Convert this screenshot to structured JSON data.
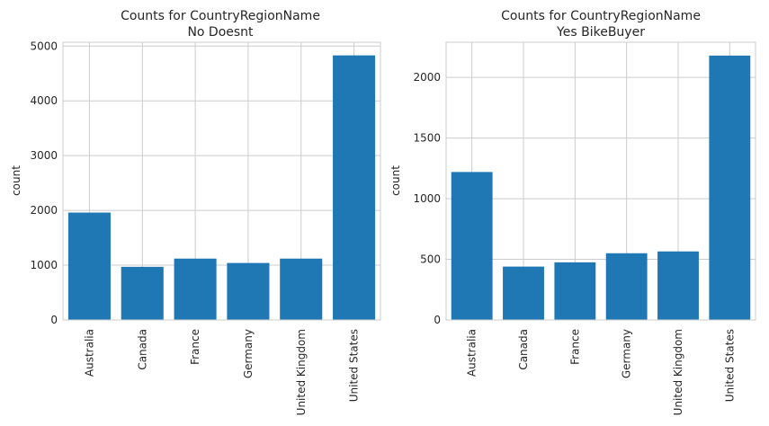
{
  "chart_data": [
    {
      "type": "bar",
      "title": "Counts for CountryRegionName",
      "subtitle": "No Doesnt",
      "ylabel": "count",
      "xlabel": "",
      "categories": [
        "Australia",
        "Canada",
        "France",
        "Germany",
        "United Kingdom",
        "United States"
      ],
      "values": [
        1960,
        970,
        1120,
        1040,
        1120,
        4830
      ],
      "ylim": [
        0,
        5070
      ],
      "yticks": [
        0,
        1000,
        2000,
        3000,
        4000,
        5000
      ],
      "grid": true,
      "bar_color": "#1f77b4"
    },
    {
      "type": "bar",
      "title": "Counts for CountryRegionName",
      "subtitle": "Yes BikeBuyer",
      "ylabel": "count",
      "xlabel": "",
      "categories": [
        "Australia",
        "Canada",
        "France",
        "Germany",
        "United Kingdom",
        "United States"
      ],
      "values": [
        1220,
        440,
        475,
        550,
        565,
        2180
      ],
      "ylim": [
        0,
        2290
      ],
      "yticks": [
        0,
        500,
        1000,
        1500,
        2000
      ],
      "grid": true,
      "bar_color": "#1f77b4"
    }
  ]
}
